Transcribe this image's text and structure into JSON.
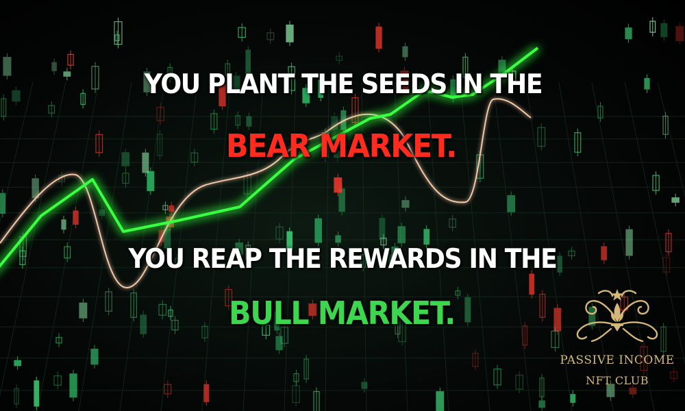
{
  "headline": {
    "line1": "YOU PLANT THE SEEDS IN THE",
    "line2": "BEAR MARKET.",
    "line3": "YOU REAP THE REWARDS IN THE",
    "line4": "BULL MARKET."
  },
  "colors": {
    "background": "#000000",
    "text": "#ffffff",
    "bear": "#ff2b1f",
    "bull": "#3fd64f",
    "trend_line": "#39ff3f",
    "secondary_line": "#f4c7a8",
    "logo_gold": "#d6b77a"
  },
  "logo": {
    "icon": "ornamental-crest-icon",
    "line1": "PASSIVE INCOME",
    "line2": "NFT CLUB"
  }
}
